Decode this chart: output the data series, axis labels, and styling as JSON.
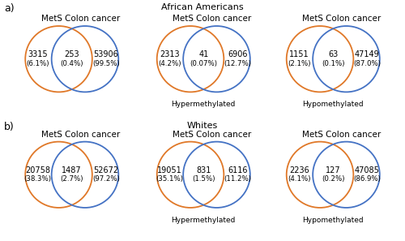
{
  "title_a": "African Americans",
  "title_b": "Whites",
  "label_a": "a)",
  "label_b": "b)",
  "orange_color": "#E07828",
  "blue_color": "#4472C4",
  "diagrams": [
    {
      "row": 0,
      "col": 0,
      "left_label": "MetS",
      "right_label": "Colon cancer",
      "subtitle": "",
      "left_val": "3315",
      "left_pct": "(6.1%)",
      "mid_val": "253",
      "mid_pct": "(0.4%)",
      "right_val": "53906",
      "right_pct": "(99.5%)"
    },
    {
      "row": 0,
      "col": 1,
      "left_label": "MetS",
      "right_label": "Colon cancer",
      "subtitle": "Hypermethylated",
      "left_val": "2313",
      "left_pct": "(4.2%)",
      "mid_val": "41",
      "mid_pct": "(0.07%)",
      "right_val": "6906",
      "right_pct": "(12.7%)"
    },
    {
      "row": 0,
      "col": 2,
      "left_label": "MetS",
      "right_label": "Colon cancer",
      "subtitle": "Hypomethylated",
      "left_val": "1151",
      "left_pct": "(2.1%)",
      "mid_val": "63",
      "mid_pct": "(0.1%)",
      "right_val": "47149",
      "right_pct": "(87.0%)"
    },
    {
      "row": 1,
      "col": 0,
      "left_label": "MetS",
      "right_label": "Colon cancer",
      "subtitle": "",
      "left_val": "20758",
      "left_pct": "(38.3%)",
      "mid_val": "1487",
      "mid_pct": "(2.7%)",
      "right_val": "52672",
      "right_pct": "(97.2%)"
    },
    {
      "row": 1,
      "col": 1,
      "left_label": "MetS",
      "right_label": "Colon cancer",
      "subtitle": "Hypermethylated",
      "left_val": "19051",
      "left_pct": "(35.1%)",
      "mid_val": "831",
      "mid_pct": "(1.5%)",
      "right_val": "6116",
      "right_pct": "(11.2%)"
    },
    {
      "row": 1,
      "col": 2,
      "left_label": "MetS",
      "right_label": "Colon cancer",
      "subtitle": "Hypomethylated",
      "left_val": "2236",
      "left_pct": "(4.1%)",
      "mid_val": "127",
      "mid_pct": "(0.2%)",
      "right_val": "47085",
      "right_pct": "(86.9%)"
    }
  ]
}
